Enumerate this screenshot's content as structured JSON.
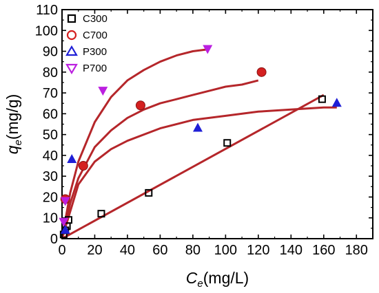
{
  "chart_data": {
    "type": "scatter",
    "xlabel": {
      "var": "C",
      "sub": "e",
      "unit": "(mg/L)"
    },
    "ylabel": {
      "var": "q",
      "sub": "e",
      "unit": "(mg/g)"
    },
    "xlim": [
      0,
      190
    ],
    "ylim": [
      0,
      110
    ],
    "xticks": [
      "0",
      "20",
      "40",
      "60",
      "80",
      "100",
      "120",
      "140",
      "160",
      "180"
    ],
    "yticks": [
      "0",
      "10",
      "20",
      "30",
      "40",
      "50",
      "60",
      "70",
      "80",
      "90",
      "100",
      "110"
    ],
    "legend_position": "top-left",
    "grid": false,
    "series": [
      {
        "name": "C300",
        "marker": "square-open",
        "color": "#000000",
        "points": [
          [
            1,
            2
          ],
          [
            2,
            4
          ],
          [
            3,
            6
          ],
          [
            4,
            9
          ],
          [
            24,
            12
          ],
          [
            53,
            22
          ],
          [
            101,
            46
          ],
          [
            159,
            67
          ]
        ]
      },
      {
        "name": "C700",
        "marker": "circle",
        "color": "#d42020",
        "points": [
          [
            2,
            19
          ],
          [
            13,
            35
          ],
          [
            48,
            64
          ],
          [
            122,
            80
          ]
        ]
      },
      {
        "name": "P300",
        "marker": "triangle-up",
        "color": "#1f1fd6",
        "points": [
          [
            2,
            4
          ],
          [
            6,
            38
          ],
          [
            83,
            53
          ],
          [
            168,
            65
          ]
        ]
      },
      {
        "name": "P700",
        "marker": "triangle-down",
        "color": "#bb1fe0",
        "points": [
          [
            1,
            8
          ],
          [
            2,
            18
          ],
          [
            25,
            71
          ],
          [
            89,
            91
          ]
        ]
      }
    ],
    "fit_curves": {
      "color": "#b5262a",
      "curves": [
        {
          "series": "P700",
          "x": [
            0,
            5,
            10,
            20,
            30,
            40,
            50,
            60,
            70,
            80,
            90
          ],
          "y": [
            0,
            22,
            37,
            56,
            68,
            76,
            81,
            85,
            88,
            90,
            91
          ]
        },
        {
          "series": "C700",
          "x": [
            0,
            5,
            10,
            20,
            30,
            40,
            50,
            60,
            70,
            80,
            90,
            100,
            110,
            120
          ],
          "y": [
            0,
            17,
            29,
            44,
            52,
            58,
            62,
            65,
            67,
            69,
            71,
            73,
            74,
            76
          ]
        },
        {
          "series": "P300",
          "x": [
            0,
            10,
            20,
            30,
            40,
            60,
            80,
            100,
            120,
            140,
            160,
            168
          ],
          "y": [
            0,
            26,
            37,
            43,
            47,
            53,
            57,
            59,
            61,
            62,
            63,
            63
          ]
        },
        {
          "series": "C300",
          "x": [
            0,
            160
          ],
          "y": [
            0,
            69
          ]
        }
      ]
    }
  }
}
